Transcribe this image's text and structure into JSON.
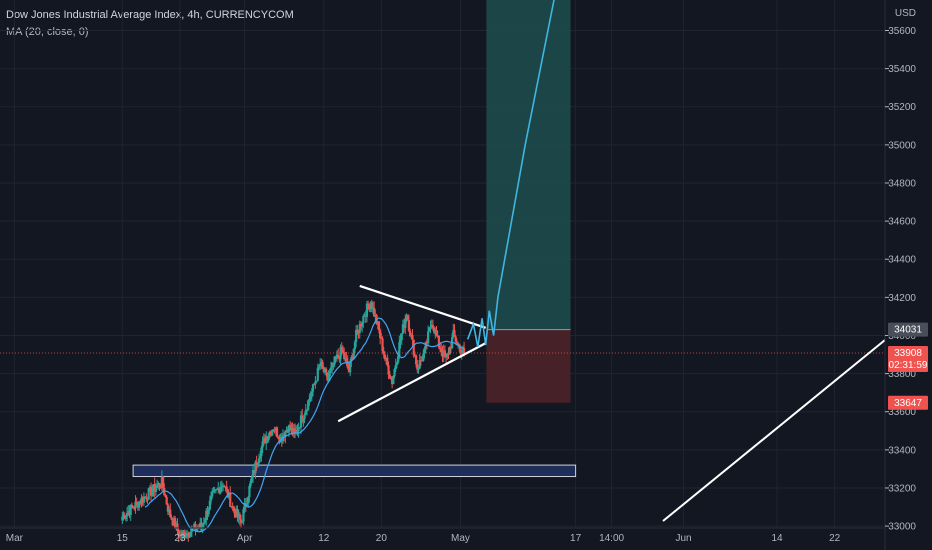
{
  "header": {
    "title": "Dow Jones Industrial Average Index, 4h, CURRENCYCOM",
    "indicator": "MA (20, close, 0)"
  },
  "axis": {
    "currency": "USD",
    "y_ticks": [
      33000,
      33200,
      33400,
      33600,
      33800,
      34000,
      34200,
      34400,
      34600,
      34800,
      35000,
      35200,
      35400,
      35600
    ],
    "x_ticks": [
      {
        "label": "Mar",
        "day": -1
      },
      {
        "label": "15",
        "day": 14
      },
      {
        "label": "23",
        "day": 22
      },
      {
        "label": "Apr",
        "day": 31
      },
      {
        "label": "12",
        "day": 42
      },
      {
        "label": "20",
        "day": 50
      },
      {
        "label": "May",
        "day": 61
      },
      {
        "label": "17",
        "day": 77
      },
      {
        "label": "14:00",
        "day": 82
      },
      {
        "label": "Jun",
        "day": 92
      },
      {
        "label": "14",
        "day": 105
      },
      {
        "label": "22",
        "day": 113
      }
    ]
  },
  "price_tags": {
    "position_top": {
      "label": "34031",
      "value": 34031
    },
    "last": {
      "label": "33908",
      "value": 33908,
      "countdown": "02:31:59"
    },
    "stop": {
      "label": "33647",
      "value": 33647
    }
  },
  "colors": {
    "background": "#131722",
    "up": "#26a69a",
    "down": "#ef5350",
    "ma": "#42a5f5",
    "target_zone": "#1e4d4d",
    "stop_zone": "#4d2229",
    "projection": "#3fb6e0",
    "support_box": "#1e2d5a",
    "drawing": "#ffffff"
  },
  "chart_data": {
    "type": "candlestick",
    "title": "Dow Jones Industrial Average Index, 4h, CURRENCYCOM",
    "series": [
      {
        "name": "MA (20, close, 0)",
        "values": []
      }
    ],
    "ohlc_anchor_closes": [
      {
        "day": 14.0,
        "close": 33050
      },
      {
        "day": 17.0,
        "close": 33150
      },
      {
        "day": 19.5,
        "close": 33230
      },
      {
        "day": 20.5,
        "close": 33070
      },
      {
        "day": 22.0,
        "close": 32950
      },
      {
        "day": 25.0,
        "close": 33000
      },
      {
        "day": 26.5,
        "close": 33150
      },
      {
        "day": 28.0,
        "close": 33230
      },
      {
        "day": 29.5,
        "close": 33080
      },
      {
        "day": 30.5,
        "close": 33020
      },
      {
        "day": 32.0,
        "close": 33250
      },
      {
        "day": 33.0,
        "close": 33380
      },
      {
        "day": 34.0,
        "close": 33470
      },
      {
        "day": 35.0,
        "close": 33520
      },
      {
        "day": 36.0,
        "close": 33460
      },
      {
        "day": 37.0,
        "close": 33520
      },
      {
        "day": 38.0,
        "close": 33480
      },
      {
        "day": 39.5,
        "close": 33620
      },
      {
        "day": 40.5,
        "close": 33720
      },
      {
        "day": 41.5,
        "close": 33850
      },
      {
        "day": 42.5,
        "close": 33770
      },
      {
        "day": 43.5,
        "close": 33860
      },
      {
        "day": 44.5,
        "close": 33920
      },
      {
        "day": 45.5,
        "close": 33810
      },
      {
        "day": 46.5,
        "close": 34000
      },
      {
        "day": 47.5,
        "close": 34100
      },
      {
        "day": 48.5,
        "close": 34180
      },
      {
        "day": 49.5,
        "close": 34050
      },
      {
        "day": 50.5,
        "close": 33880
      },
      {
        "day": 51.5,
        "close": 33760
      },
      {
        "day": 52.5,
        "close": 33950
      },
      {
        "day": 53.5,
        "close": 34120
      },
      {
        "day": 54.0,
        "close": 34020
      },
      {
        "day": 55.0,
        "close": 33830
      },
      {
        "day": 56.0,
        "close": 33910
      },
      {
        "day": 57.0,
        "close": 34080
      },
      {
        "day": 58.0,
        "close": 33950
      },
      {
        "day": 59.0,
        "close": 33870
      },
      {
        "day": 60.0,
        "close": 34000
      },
      {
        "day": 61.0,
        "close": 33930
      },
      {
        "day": 61.5,
        "close": 33908
      }
    ],
    "support_zone": {
      "low": 33260,
      "high": 33320,
      "from_day": 15.5,
      "to_day": 77.0
    },
    "triangle": {
      "upper": [
        {
          "day": 47.0,
          "price": 34260
        },
        {
          "day": 64.5,
          "price": 34040
        }
      ],
      "lower": [
        {
          "day": 44.0,
          "price": 33550
        },
        {
          "day": 64.5,
          "price": 33960
        }
      ]
    },
    "projection_path": [
      {
        "day": 62.0,
        "price": 33980
      },
      {
        "day": 62.8,
        "price": 34060
      },
      {
        "day": 63.4,
        "price": 33940
      },
      {
        "day": 64.0,
        "price": 34090
      },
      {
        "day": 64.5,
        "price": 33950
      },
      {
        "day": 65.0,
        "price": 34130
      },
      {
        "day": 65.6,
        "price": 34000
      },
      {
        "day": 66.2,
        "price": 34200
      },
      {
        "day": 70.0,
        "price": 35000
      },
      {
        "day": 74.0,
        "price": 35760
      }
    ],
    "position": {
      "entry": 34031,
      "target": 35760,
      "stop": 33647,
      "from_day": 64.6,
      "to_day": 76.3
    },
    "last_price_line": 33908,
    "ylim": [
      32990,
      35760
    ],
    "xlim": [
      -3,
      120
    ]
  }
}
